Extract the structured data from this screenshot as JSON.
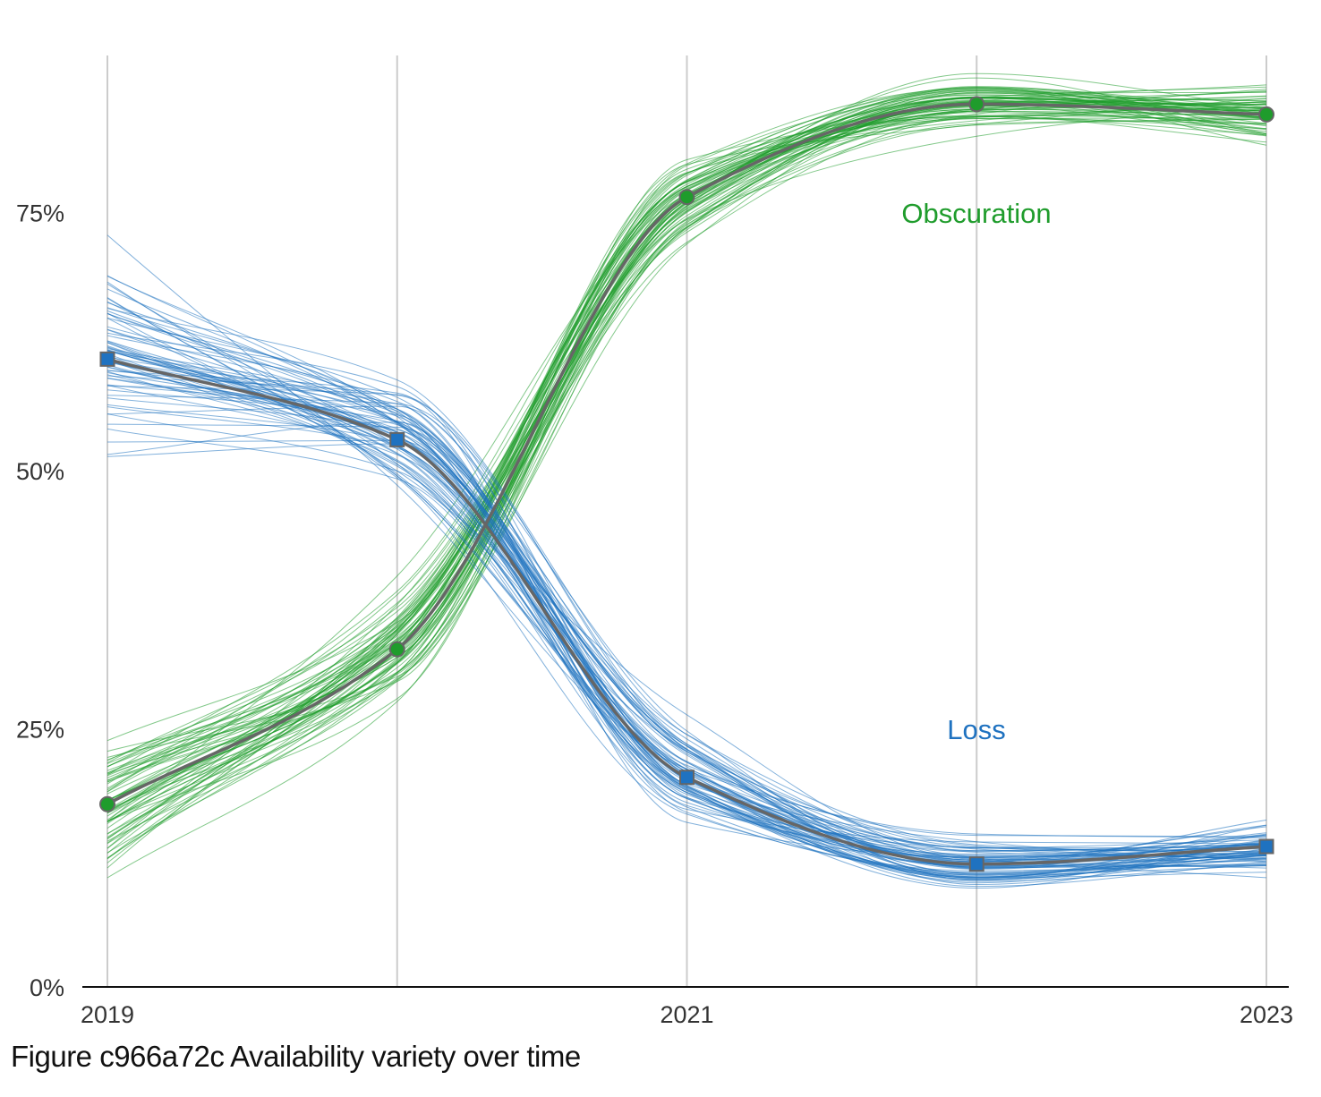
{
  "caption": "Figure c966a72c Availability variety over time",
  "colors": {
    "obscuration": "#1f9c2c",
    "loss": "#1f72c0",
    "mean_line": "#666666",
    "grid": "#cccccc",
    "axis": "#111111"
  },
  "chart_data": {
    "type": "line",
    "title": "",
    "xlabel": "",
    "ylabel": "",
    "x": [
      2019,
      2020,
      2021,
      2022,
      2023
    ],
    "x_tick_labels": [
      "2019",
      "",
      "2021",
      "",
      "2023"
    ],
    "y_ticks": [
      0,
      25,
      50,
      75
    ],
    "y_tick_labels": [
      "0%",
      "25%",
      "50%",
      "75%"
    ],
    "ylim": [
      0,
      90
    ],
    "grid": "vertical",
    "series": [
      {
        "name": "Obscuration",
        "marker": "circle",
        "values": [
          17.7,
          32.7,
          76.5,
          85.5,
          84.5
        ]
      },
      {
        "name": "Loss",
        "marker": "square",
        "values": [
          60.8,
          53.0,
          20.3,
          11.9,
          13.6
        ]
      }
    ],
    "spaghetti": {
      "count_per_series": 70,
      "spread": {
        "Obscuration": [
          3.5,
          2.5,
          2.0,
          1.2,
          1.2
        ],
        "Loss": [
          4.5,
          2.5,
          2.5,
          1.2,
          1.2
        ]
      }
    }
  }
}
